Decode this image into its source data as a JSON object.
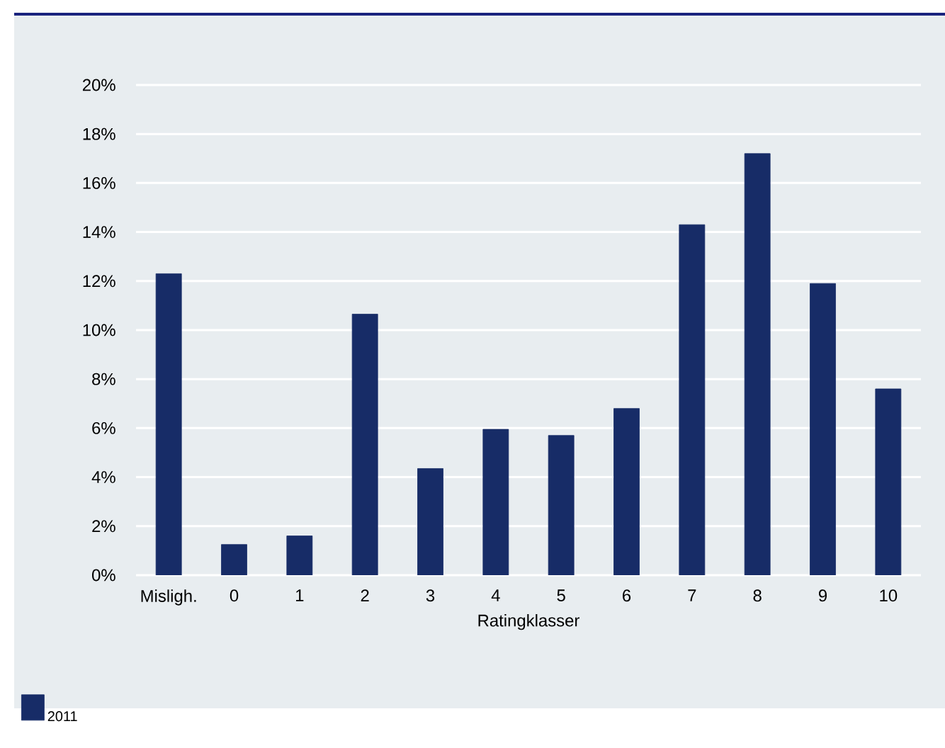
{
  "chart_data": {
    "type": "bar",
    "xlabel": "Ratingklasser",
    "categories": [
      "Misligh.",
      "0",
      "1",
      "2",
      "3",
      "4",
      "5",
      "6",
      "7",
      "8",
      "9",
      "10"
    ],
    "series": [
      {
        "name": "2011",
        "color": "#172c67",
        "values": [
          12.3,
          1.25,
          1.6,
          10.65,
          4.35,
          5.95,
          5.7,
          6.8,
          14.3,
          17.2,
          11.9,
          7.6
        ]
      }
    ],
    "ylim": [
      0,
      20
    ],
    "yticks": [
      {
        "value": 0,
        "label": "0%"
      },
      {
        "value": 2,
        "label": "2%"
      },
      {
        "value": 4,
        "label": "4%"
      },
      {
        "value": 6,
        "label": "6%"
      },
      {
        "value": 8,
        "label": "8%"
      },
      {
        "value": 10,
        "label": "10%"
      },
      {
        "value": 12,
        "label": "12%"
      },
      {
        "value": 14,
        "label": "14%"
      },
      {
        "value": 16,
        "label": "16%"
      },
      {
        "value": 18,
        "label": "18%"
      },
      {
        "value": 20,
        "label": "20%"
      }
    ],
    "grid": "y",
    "legend": "bottom left"
  }
}
